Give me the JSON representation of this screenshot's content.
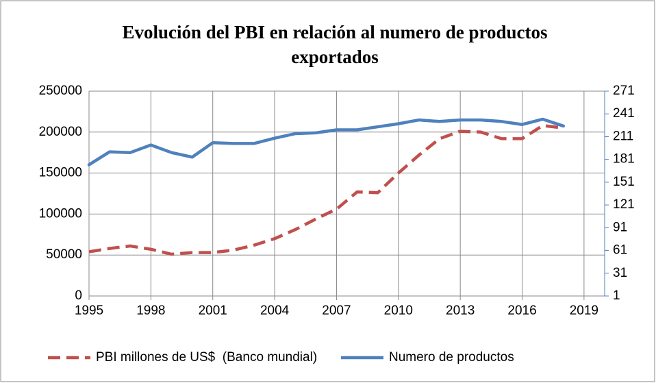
{
  "chart_data": {
    "type": "line",
    "title": [
      "Evolución del PBI en relación al numero de productos",
      "exportados"
    ],
    "x": [
      1995,
      1996,
      1997,
      1998,
      1999,
      2000,
      2001,
      2002,
      2003,
      2004,
      2005,
      2006,
      2007,
      2008,
      2009,
      2010,
      2011,
      2012,
      2013,
      2014,
      2015,
      2016,
      2017,
      2018
    ],
    "series": [
      {
        "name": "PBI millones de US$  (Banco mundial)",
        "color": "#c0504d",
        "dashed": true,
        "values": [
          54000,
          58000,
          61000,
          57000,
          51000,
          53000,
          53000,
          56000,
          62000,
          70000,
          81000,
          94000,
          106000,
          127000,
          126000,
          150000,
          172000,
          192000,
          201000,
          200000,
          192000,
          192000,
          208000,
          205000
        ]
      },
      {
        "name": "Numero de productos",
        "color": "#4f81bd",
        "axis": "y2",
        "values": [
          174,
          191,
          190,
          200,
          190,
          184,
          203,
          202,
          202,
          209,
          215,
          216,
          220,
          220,
          224,
          228,
          233,
          231,
          233,
          233,
          231,
          227,
          234,
          225
        ]
      }
    ],
    "xlim": [
      1995,
      2020
    ],
    "xticks": [
      1995,
      1998,
      2001,
      2004,
      2007,
      2010,
      2013,
      2016,
      2019
    ],
    "ylim": [
      0,
      250000
    ],
    "yticks": [
      0,
      50000,
      100000,
      150000,
      200000,
      250000
    ],
    "y2lim": [
      1,
      271
    ],
    "y2ticks": [
      1,
      31,
      61,
      91,
      121,
      151,
      181,
      211,
      241,
      271
    ],
    "grid": true,
    "legend": "bottom"
  }
}
